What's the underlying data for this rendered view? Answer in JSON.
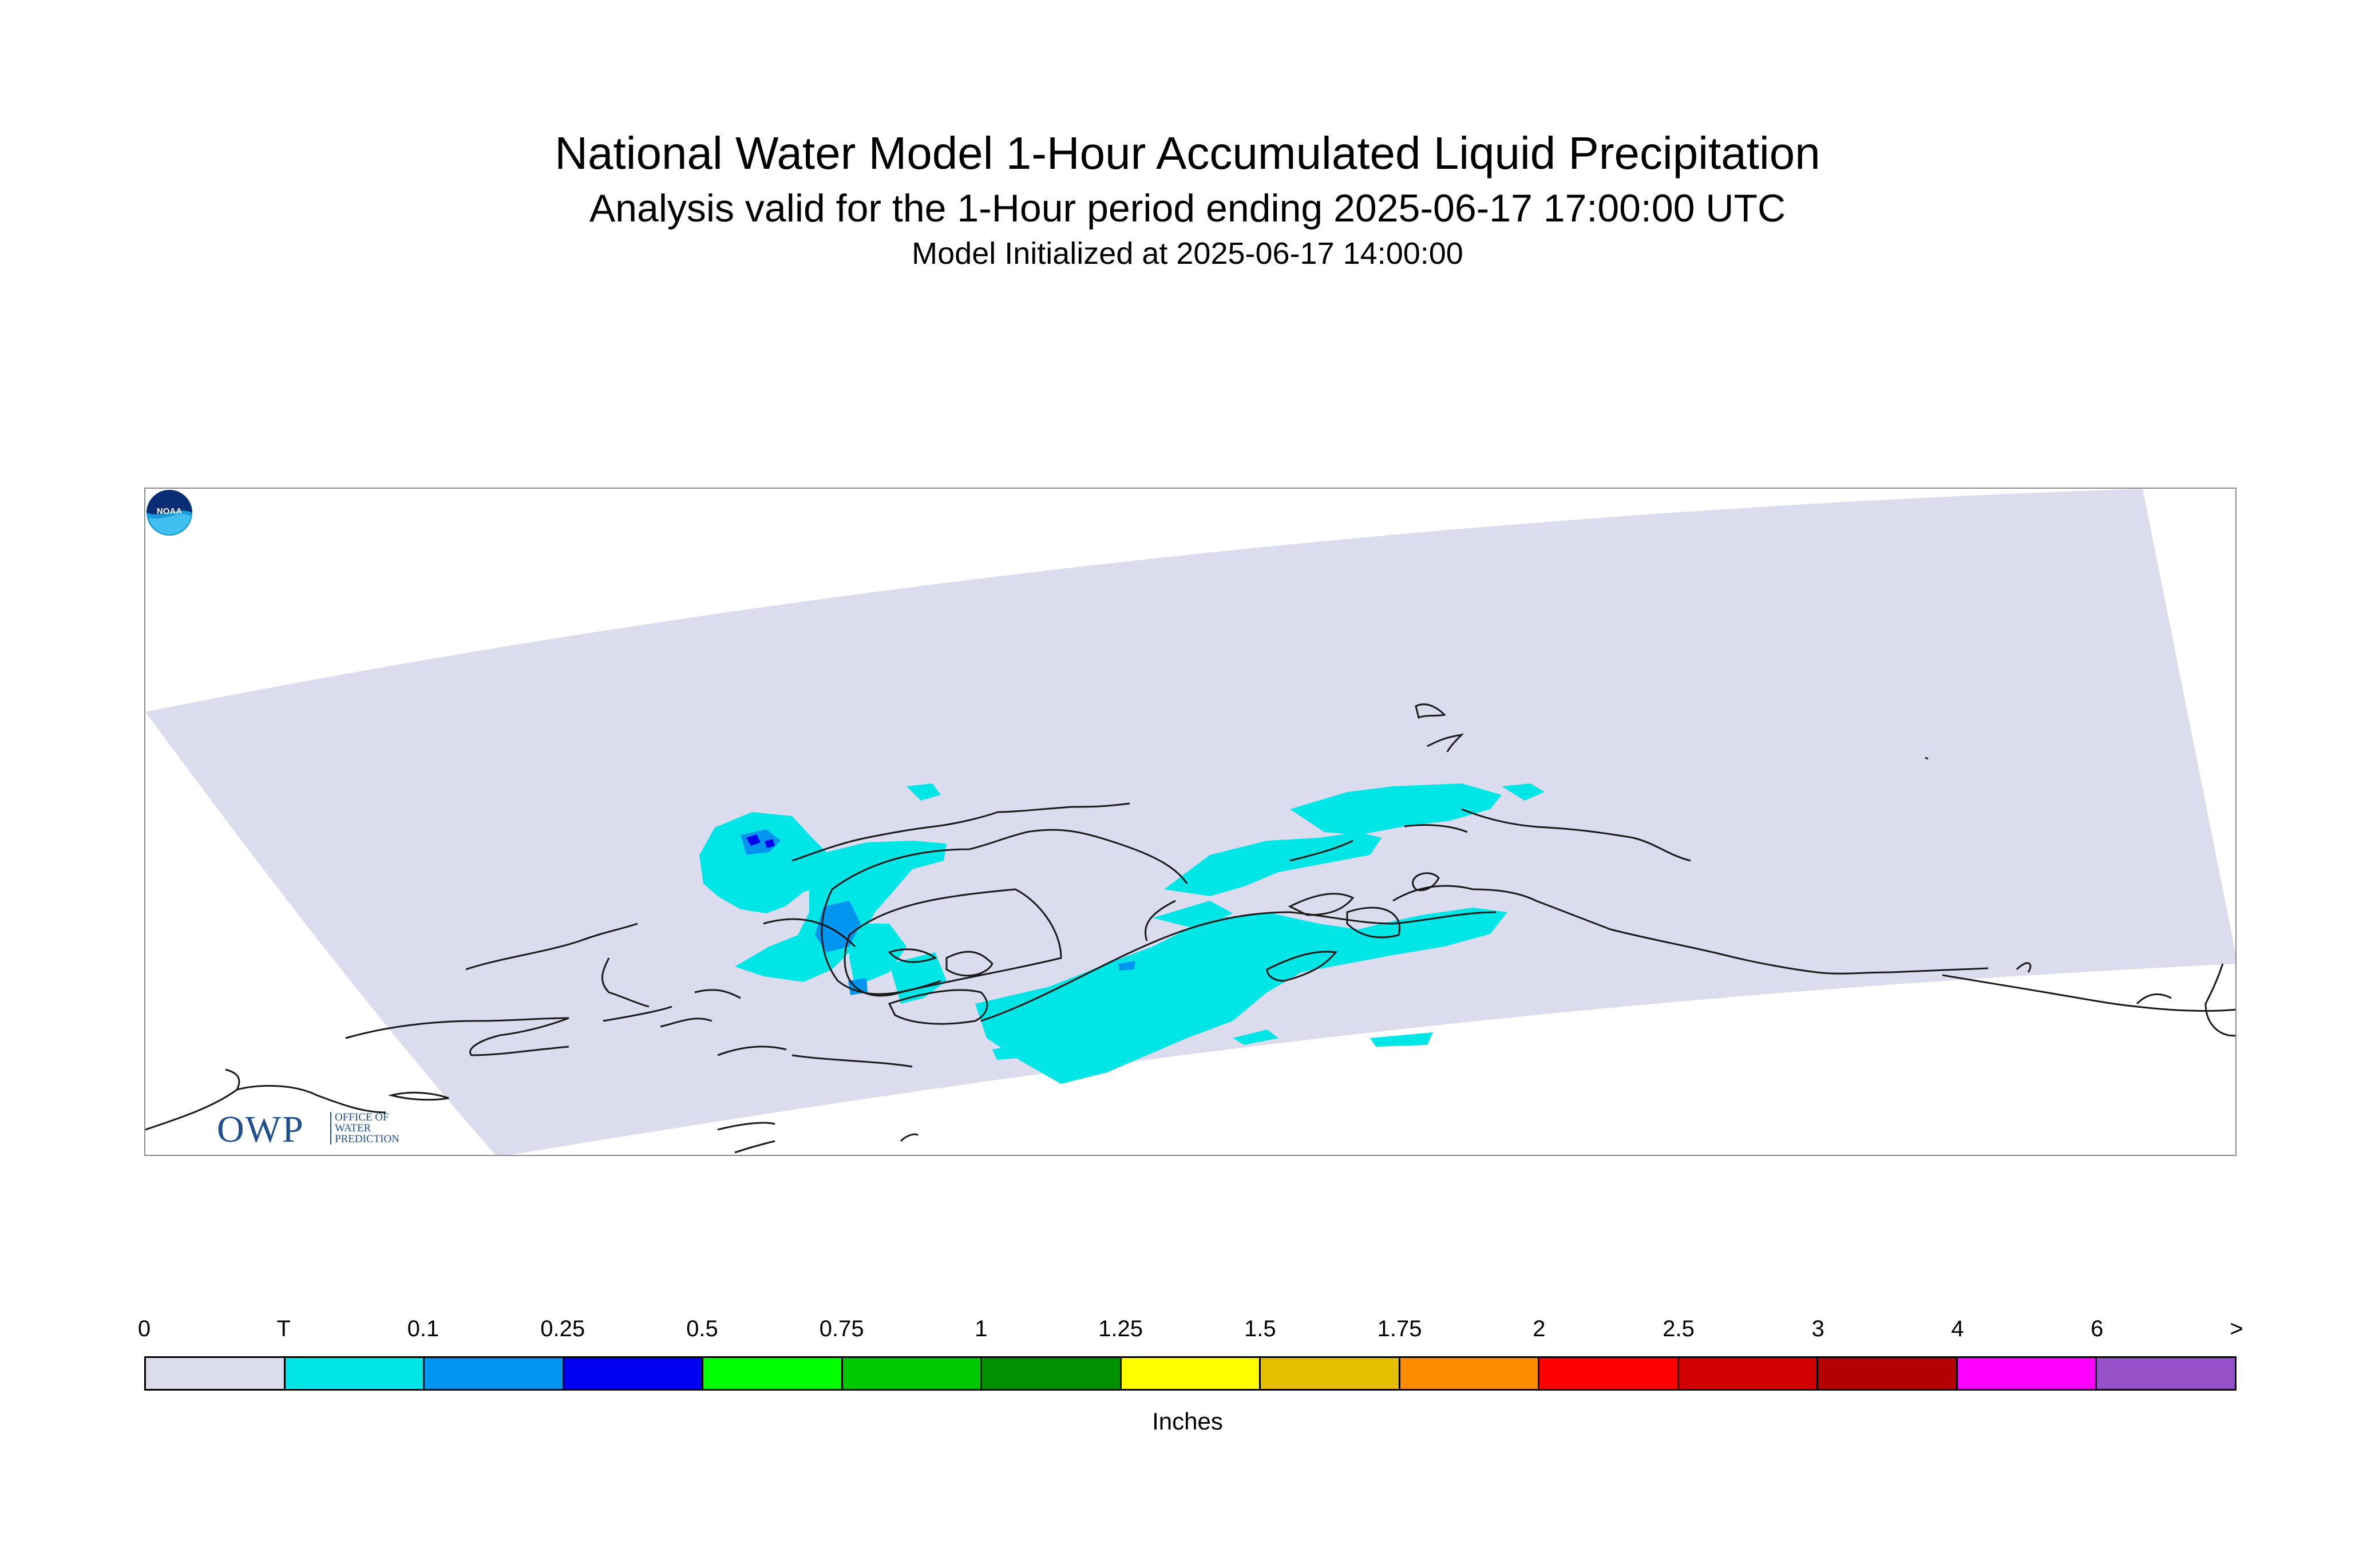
{
  "title": "National Water Model 1-Hour Accumulated Liquid Precipitation",
  "subtitle": "Analysis valid for the 1-Hour period ending 2025-06-17 17:00:00 UTC",
  "init_line": "Model Initialized at 2025-06-17 14:00:00",
  "logos": {
    "owp_letters": "OWP",
    "owp_text": [
      "OFFICE OF",
      "WATER",
      "PREDICTION"
    ],
    "noaa_text": "NOAA"
  },
  "colors": {
    "domain_fill": "#dcdcef",
    "coastline": "#1a1a1a",
    "map_border": "#8a8a8a"
  },
  "legend": {
    "units": "Inches",
    "tick_labels": [
      "0",
      "T",
      "0.1",
      "0.25",
      "0.5",
      "0.75",
      "1",
      "1.25",
      "1.5",
      "1.75",
      "2",
      "2.5",
      "3",
      "4",
      "6",
      ">"
    ],
    "bin_colors": [
      "#dcdcef",
      "#00e6e6",
      "#0096f0",
      "#0000f0",
      "#00ff00",
      "#00c800",
      "#009100",
      "#ffff00",
      "#e6be00",
      "#ff8c00",
      "#ff0000",
      "#d20000",
      "#b40000",
      "#ff00ff",
      "#9650c8"
    ]
  }
}
